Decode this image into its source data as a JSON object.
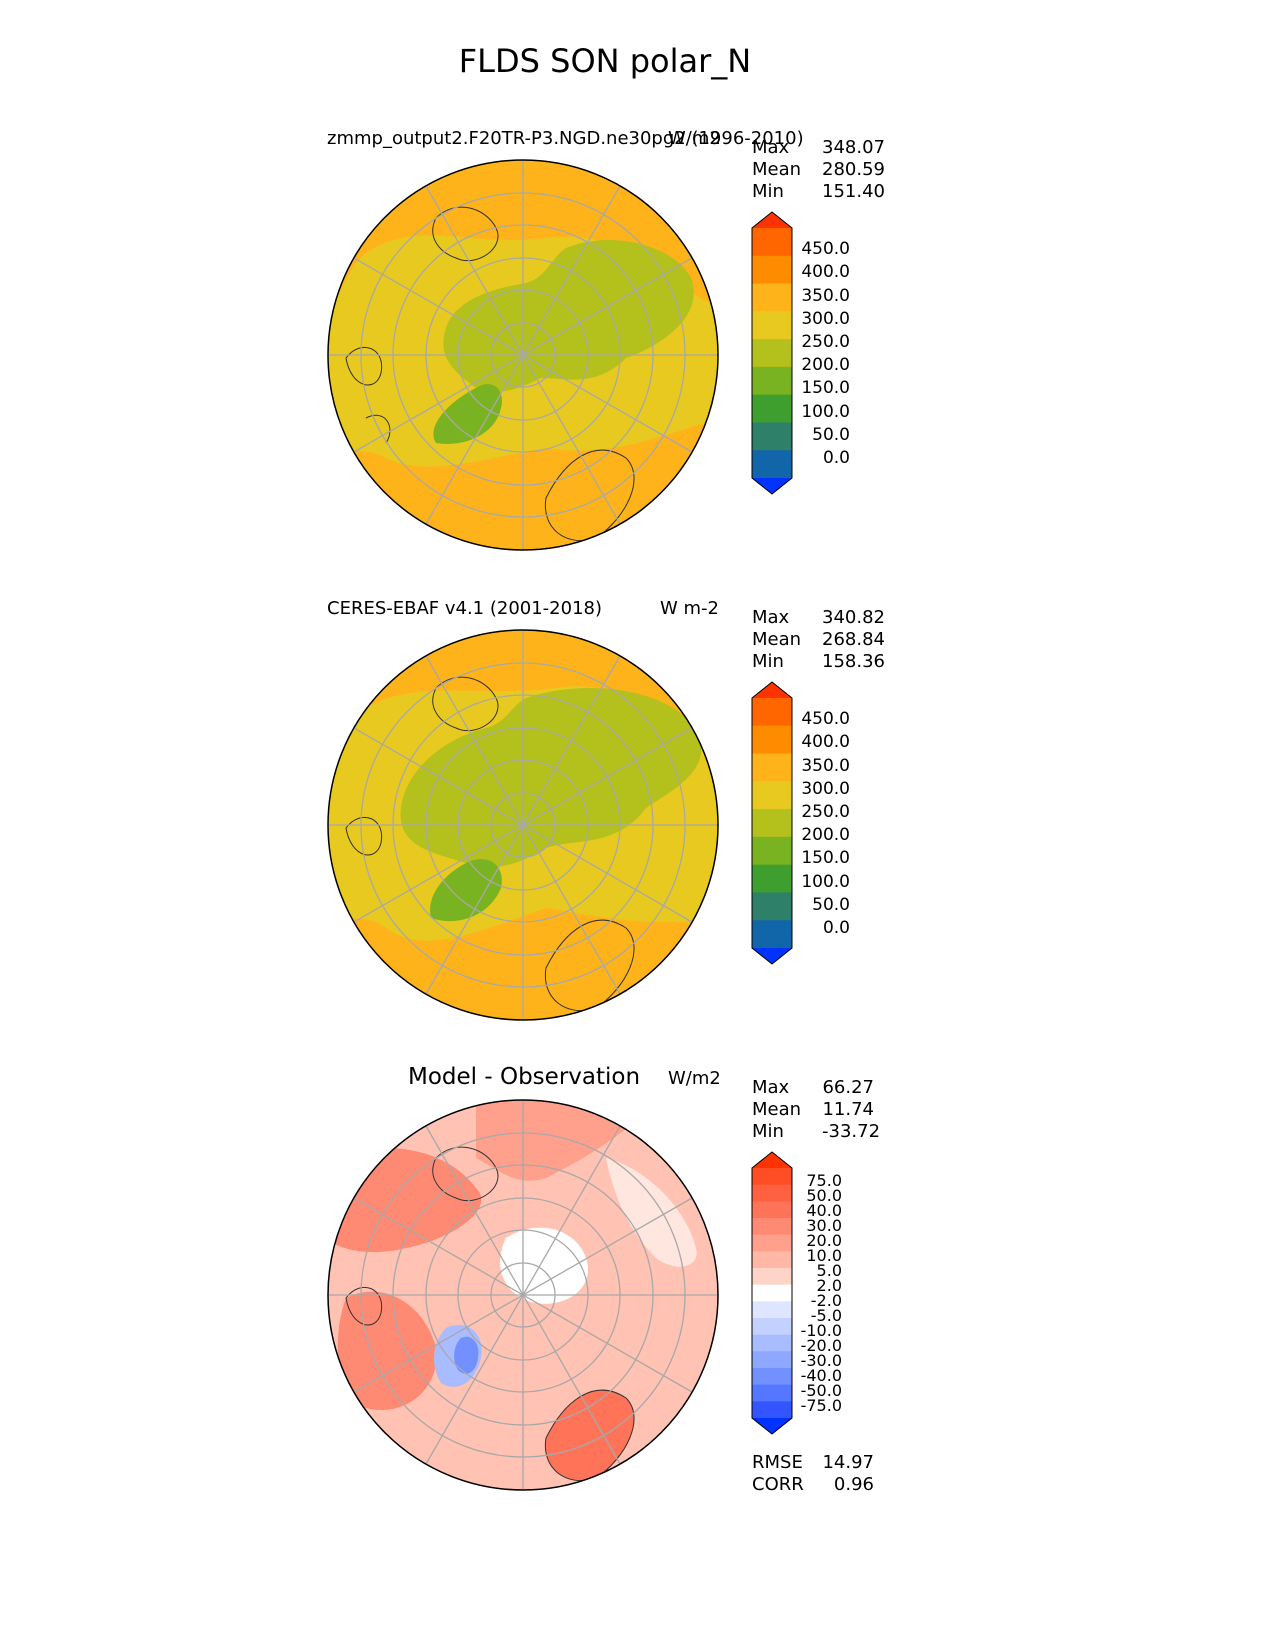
{
  "figure_title": "FLDS SON polar_N",
  "panels": [
    {
      "title_left": "zmmp_output2.F20TR-P3.NGD.ne30pg2 (1996-2010)",
      "units": "W/m2",
      "stats": {
        "max_label": "Max",
        "max": "348.07",
        "mean_label": "Mean",
        "mean": "280.59",
        "min_label": "Min",
        "min": "151.40"
      },
      "colorbar": {
        "ticks": [
          "450.0",
          "400.0",
          "350.0",
          "300.0",
          "250.0",
          "200.0",
          "150.0",
          "100.0",
          "50.0",
          "0.0"
        ],
        "colors": [
          "#ff3300",
          "#ff6600",
          "#ff8c00",
          "#ffb31a",
          "#e8c920",
          "#b4c01c",
          "#7ab321",
          "#3e9e2e",
          "#2e8068",
          "#1166aa",
          "#0033ff"
        ]
      }
    },
    {
      "title_left": "CERES-EBAF v4.1 (2001-2018)",
      "units": "W m-2",
      "stats": {
        "max_label": "Max",
        "max": "340.82",
        "mean_label": "Mean",
        "mean": "268.84",
        "min_label": "Min",
        "min": "158.36"
      },
      "colorbar": {
        "ticks": [
          "450.0",
          "400.0",
          "350.0",
          "300.0",
          "250.0",
          "200.0",
          "150.0",
          "100.0",
          "50.0",
          "0.0"
        ],
        "colors": [
          "#ff3300",
          "#ff6600",
          "#ff8c00",
          "#ffb31a",
          "#e8c920",
          "#b4c01c",
          "#7ab321",
          "#3e9e2e",
          "#2e8068",
          "#1166aa",
          "#0033ff"
        ]
      }
    },
    {
      "title_center": "Model - Observation",
      "units": "W/m2",
      "stats": {
        "max_label": "Max",
        "max": "66.27",
        "mean_label": "Mean",
        "mean": "11.74",
        "min_label": "Min",
        "min": "-33.72"
      },
      "colorbar": {
        "ticks": [
          "75.0",
          "50.0",
          "40.0",
          "30.0",
          "20.0",
          "10.0",
          "5.0",
          "2.0",
          "-2.0",
          "-5.0",
          "-10.0",
          "-20.0",
          "-30.0",
          "-40.0",
          "-50.0",
          "-75.0"
        ],
        "colors": [
          "#ff3300",
          "#ff4d26",
          "#ff6040",
          "#ff7359",
          "#ff8a73",
          "#ffa08c",
          "#ffb8a6",
          "#ffd4c8",
          "#ffffff",
          "#dde5ff",
          "#c4d1ff",
          "#a9bcff",
          "#8ea7ff",
          "#7390ff",
          "#5577ff",
          "#3355ff",
          "#0033ff"
        ]
      },
      "metrics": {
        "rmse_label": "RMSE",
        "rmse": "14.97",
        "corr_label": "CORR",
        "corr": "0.96"
      }
    }
  ]
}
